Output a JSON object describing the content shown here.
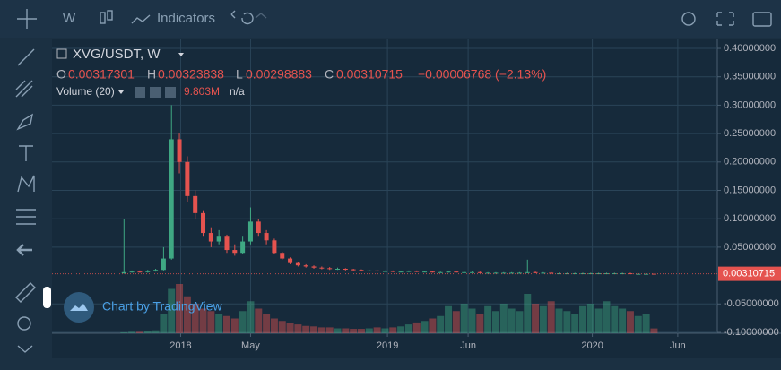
{
  "toolbar": {
    "interval": "W",
    "indicators": "Indicators"
  },
  "chart_data": {
    "type": "candlestick",
    "title": "XVG/USDT, W",
    "legend": {
      "o_label": "O",
      "h_label": "H",
      "l_label": "L",
      "c_label": "C",
      "change": "−0.00006768 (−2.13%)",
      "volume_title": "Volume (20)",
      "volume_ma": "n/a"
    },
    "watermark": "Chart by TradingView",
    "up_color": "#3fa883",
    "down_color": "#e5534f",
    "grid": true,
    "categories": [
      null,
      null,
      null,
      null,
      null,
      null,
      null,
      null,
      null,
      null,
      null,
      null,
      null,
      null,
      null,
      null,
      null,
      null,
      null,
      null,
      null,
      null,
      null,
      null,
      null,
      null,
      null,
      null,
      null,
      null,
      null,
      null,
      null,
      null,
      null,
      null,
      null,
      null,
      null,
      null,
      null,
      null,
      null,
      null,
      null,
      null,
      null,
      null,
      null,
      null,
      null,
      null,
      null,
      null,
      null,
      null,
      null,
      null,
      null,
      null,
      null,
      null,
      null,
      null,
      null,
      null,
      null,
      null
    ],
    "open": [
      0.004,
      0.006,
      0.007,
      0.006,
      0.008,
      0.01,
      0.03,
      0.24,
      0.2,
      0.14,
      0.11,
      0.075,
      0.06,
      0.07,
      0.045,
      0.04,
      0.06,
      0.095,
      0.075,
      0.062,
      0.04,
      0.03,
      0.022,
      0.018,
      0.016,
      0.014,
      0.013,
      0.012,
      0.012,
      0.011,
      0.01,
      0.009,
      0.009,
      0.008,
      0.008,
      0.007,
      0.007,
      0.008,
      0.007,
      0.007,
      0.006,
      0.006,
      0.007,
      0.006,
      0.006,
      0.006,
      0.005,
      0.005,
      0.005,
      0.005,
      0.005,
      0.005,
      0.006,
      0.005,
      0.005,
      0.004,
      0.004,
      0.004,
      0.004,
      0.004,
      0.004,
      0.004,
      0.004,
      0.004,
      0.004,
      0.003,
      0.003,
      0.00317301
    ],
    "high": [
      0.1,
      0.009,
      0.009,
      0.01,
      0.012,
      0.05,
      0.3,
      0.25,
      0.21,
      0.15,
      0.115,
      0.085,
      0.08,
      0.072,
      0.055,
      0.07,
      0.12,
      0.1,
      0.08,
      0.065,
      0.042,
      0.032,
      0.024,
      0.02,
      0.018,
      0.016,
      0.015,
      0.014,
      0.013,
      0.012,
      0.011,
      0.01,
      0.01,
      0.009,
      0.009,
      0.008,
      0.009,
      0.009,
      0.008,
      0.008,
      0.007,
      0.008,
      0.008,
      0.007,
      0.007,
      0.007,
      0.006,
      0.006,
      0.006,
      0.006,
      0.006,
      0.028,
      0.007,
      0.006,
      0.006,
      0.005,
      0.005,
      0.005,
      0.005,
      0.005,
      0.005,
      0.005,
      0.005,
      0.005,
      0.005,
      0.004,
      0.004,
      0.00323838
    ],
    "low": [
      0.003,
      0.005,
      0.005,
      0.005,
      0.007,
      0.009,
      0.028,
      0.18,
      0.13,
      0.1,
      0.07,
      0.05,
      0.055,
      0.04,
      0.035,
      0.038,
      0.055,
      0.07,
      0.055,
      0.038,
      0.028,
      0.02,
      0.016,
      0.014,
      0.012,
      0.011,
      0.01,
      0.01,
      0.009,
      0.009,
      0.008,
      0.008,
      0.007,
      0.007,
      0.006,
      0.006,
      0.006,
      0.006,
      0.006,
      0.005,
      0.005,
      0.005,
      0.005,
      0.005,
      0.005,
      0.004,
      0.004,
      0.004,
      0.004,
      0.004,
      0.004,
      0.004,
      0.004,
      0.004,
      0.003,
      0.003,
      0.003,
      0.003,
      0.003,
      0.003,
      0.003,
      0.003,
      0.003,
      0.003,
      0.003,
      0.002,
      0.002,
      0.00298883
    ],
    "close": [
      0.006,
      0.007,
      0.006,
      0.008,
      0.01,
      0.03,
      0.24,
      0.2,
      0.14,
      0.11,
      0.075,
      0.06,
      0.07,
      0.045,
      0.04,
      0.06,
      0.095,
      0.075,
      0.062,
      0.04,
      0.03,
      0.022,
      0.018,
      0.016,
      0.014,
      0.013,
      0.012,
      0.012,
      0.011,
      0.01,
      0.009,
      0.009,
      0.008,
      0.008,
      0.007,
      0.007,
      0.008,
      0.007,
      0.007,
      0.006,
      0.006,
      0.007,
      0.006,
      0.006,
      0.006,
      0.005,
      0.005,
      0.005,
      0.005,
      0.005,
      0.005,
      0.006,
      0.005,
      0.005,
      0.004,
      0.004,
      0.004,
      0.004,
      0.004,
      0.004,
      0.004,
      0.004,
      0.004,
      0.004,
      0.003,
      0.003,
      0.003,
      0.00310715
    ],
    "volume": [
      2,
      3,
      3,
      4,
      6,
      40,
      90,
      100,
      75,
      60,
      50,
      45,
      40,
      35,
      30,
      45,
      65,
      50,
      40,
      30,
      25,
      20,
      18,
      15,
      14,
      12,
      12,
      10,
      10,
      9,
      9,
      10,
      12,
      10,
      12,
      14,
      18,
      22,
      25,
      30,
      35,
      55,
      45,
      60,
      50,
      40,
      55,
      45,
      60,
      50,
      45,
      80,
      60,
      55,
      65,
      50,
      45,
      40,
      55,
      60,
      50,
      65,
      55,
      50,
      45,
      35,
      40,
      9.803
    ],
    "volume_value_labels": {
      "67": "9.803M"
    },
    "ylim": [
      -0.1016,
      0.4158
    ],
    "yticks": [
      {
        "value": 0.4,
        "label": "0.40000000"
      },
      {
        "value": 0.35,
        "label": "0.35000000"
      },
      {
        "value": 0.3,
        "label": "0.30000000"
      },
      {
        "value": 0.25,
        "label": "0.25000000"
      },
      {
        "value": 0.2,
        "label": "0.20000000"
      },
      {
        "value": 0.15,
        "label": "0.15000000"
      },
      {
        "value": 0.1,
        "label": "0.10000000"
      },
      {
        "value": 0.05,
        "label": "0.05000000"
      },
      {
        "value": -0.05,
        "label": "-0.05000000"
      },
      {
        "value": -0.1,
        "label": "-0.10000000"
      }
    ],
    "xlim": [
      -9.1,
      75
    ],
    "xticks": [
      {
        "value": 7.16,
        "label": "2018"
      },
      {
        "value": 16,
        "label": "May"
      },
      {
        "value": 33.3,
        "label": "2019"
      },
      {
        "value": 43.5,
        "label": "Jun"
      },
      {
        "value": 59.2,
        "label": "2020"
      },
      {
        "value": 70,
        "label": "Jun"
      }
    ]
  }
}
